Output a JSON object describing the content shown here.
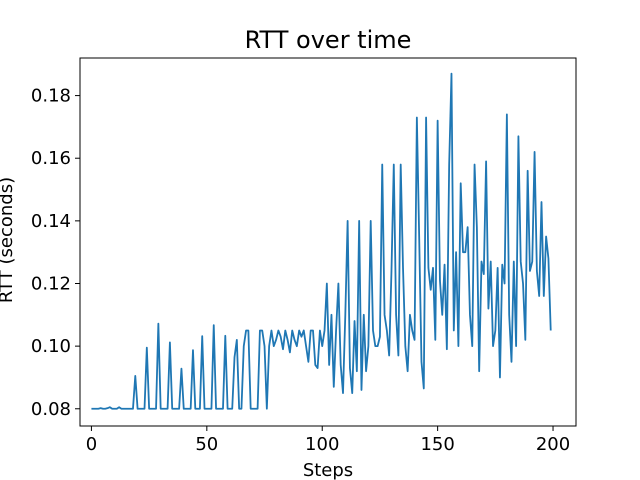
{
  "chart_data": {
    "type": "line",
    "title": "RTT over time",
    "xlabel": "Steps",
    "ylabel": "RTT (seconds)",
    "xlim": [
      -4.95,
      209.95
    ],
    "ylim": [
      0.0745,
      0.192
    ],
    "xticks": [
      0,
      50,
      100,
      150,
      200
    ],
    "xtick_labels": [
      "0",
      "50",
      "100",
      "150",
      "200"
    ],
    "yticks": [
      0.08,
      0.1,
      0.12,
      0.14,
      0.16,
      0.18
    ],
    "ytick_labels": [
      "0.08",
      "0.10",
      "0.12",
      "0.14",
      "0.16",
      "0.18"
    ],
    "grid": false,
    "series": [
      {
        "color": "#1f77b4",
        "x": [
          0,
          1,
          2,
          3,
          4,
          5,
          6,
          7,
          8,
          9,
          10,
          11,
          12,
          13,
          14,
          15,
          16,
          17,
          18,
          19,
          20,
          21,
          22,
          23,
          24,
          25,
          26,
          27,
          28,
          29,
          30,
          31,
          32,
          33,
          34,
          35,
          36,
          37,
          38,
          39,
          40,
          41,
          42,
          43,
          44,
          45,
          46,
          47,
          48,
          49,
          50,
          51,
          52,
          53,
          54,
          55,
          56,
          57,
          58,
          59,
          60,
          61,
          62,
          63,
          64,
          65,
          66,
          67,
          68,
          69,
          70,
          71,
          72,
          73,
          74,
          75,
          76,
          77,
          78,
          79,
          80,
          81,
          82,
          83,
          84,
          85,
          86,
          87,
          88,
          89,
          90,
          91,
          92,
          93,
          94,
          95,
          96,
          97,
          98,
          99,
          100,
          101,
          102,
          103,
          104,
          105,
          106,
          107,
          108,
          109,
          110,
          111,
          112,
          113,
          114,
          115,
          116,
          117,
          118,
          119,
          120,
          121,
          122,
          123,
          124,
          125,
          126,
          127,
          128,
          129,
          130,
          131,
          132,
          133,
          134,
          135,
          136,
          137,
          138,
          139,
          140,
          141,
          142,
          143,
          144,
          145,
          146,
          147,
          148,
          149,
          150,
          151,
          152,
          153,
          154,
          155,
          156,
          157,
          158,
          159,
          160,
          161,
          162,
          163,
          164,
          165,
          166,
          167,
          168,
          169,
          170,
          171,
          172,
          173,
          174,
          175,
          176,
          177,
          178,
          179,
          180,
          181,
          182,
          183,
          184,
          185,
          186,
          187,
          188,
          189,
          190,
          191,
          192,
          193,
          194,
          195,
          196,
          197,
          198,
          199
        ],
        "y": [
          0.08,
          0.08,
          0.08,
          0.08,
          0.0802,
          0.08,
          0.08,
          0.0802,
          0.0805,
          0.08,
          0.08,
          0.08,
          0.0805,
          0.08,
          0.08,
          0.08,
          0.08,
          0.08,
          0.08,
          0.0905,
          0.08,
          0.08,
          0.08,
          0.08,
          0.0995,
          0.08,
          0.08,
          0.08,
          0.08,
          0.1072,
          0.08,
          0.08,
          0.08,
          0.08,
          0.1012,
          0.08,
          0.08,
          0.08,
          0.08,
          0.0928,
          0.08,
          0.08,
          0.08,
          0.08,
          0.0987,
          0.08,
          0.08,
          0.08,
          0.1032,
          0.08,
          0.08,
          0.08,
          0.08,
          0.1067,
          0.08,
          0.08,
          0.08,
          0.08,
          0.1033,
          0.08,
          0.08,
          0.08,
          0.0965,
          0.102,
          0.08,
          0.08,
          0.1,
          0.105,
          0.105,
          0.08,
          0.08,
          0.08,
          0.08,
          0.105,
          0.105,
          0.1,
          0.08,
          0.1,
          0.105,
          0.1,
          0.102,
          0.105,
          0.103,
          0.099,
          0.105,
          0.102,
          0.098,
          0.105,
          0.102,
          0.1,
          0.105,
          0.103,
          0.105,
          0.1,
          0.095,
          0.105,
          0.105,
          0.094,
          0.093,
          0.105,
          0.1,
          0.105,
          0.12,
          0.094,
          0.11,
          0.087,
          0.105,
          0.12,
          0.094,
          0.085,
          0.11,
          0.14,
          0.093,
          0.085,
          0.108,
          0.092,
          0.14,
          0.086,
          0.11,
          0.092,
          0.1,
          0.14,
          0.105,
          0.1,
          0.1,
          0.103,
          0.158,
          0.11,
          0.105,
          0.097,
          0.124,
          0.158,
          0.11,
          0.097,
          0.158,
          0.125,
          0.1,
          0.092,
          0.11,
          0.105,
          0.102,
          0.173,
          0.135,
          0.095,
          0.0865,
          0.173,
          0.125,
          0.118,
          0.125,
          0.102,
          0.172,
          0.121,
          0.11,
          0.126,
          0.099,
          0.158,
          0.187,
          0.105,
          0.13,
          0.1,
          0.152,
          0.13,
          0.13,
          0.138,
          0.11,
          0.1,
          0.158,
          0.138,
          0.092,
          0.127,
          0.123,
          0.159,
          0.112,
          0.127,
          0.1,
          0.105,
          0.125,
          0.09,
          0.126,
          0.12,
          0.174,
          0.11,
          0.095,
          0.127,
          0.1,
          0.167,
          0.127,
          0.12,
          0.102,
          0.156,
          0.124,
          0.127,
          0.162,
          0.124,
          0.116,
          0.146,
          0.116,
          0.135,
          0.128,
          0.105
        ]
      }
    ]
  }
}
